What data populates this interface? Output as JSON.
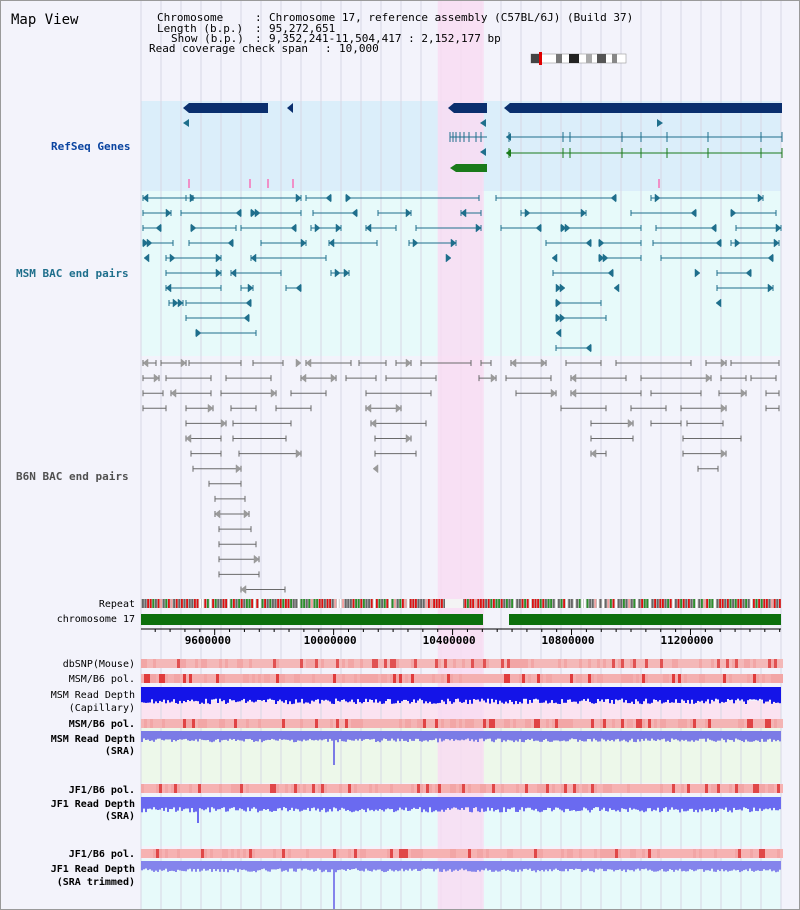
{
  "app": {
    "title": "Map View"
  },
  "info": {
    "chromosome_label": "Chromosome",
    "chromosome_value": "Chromosome 17, reference assembly (C57BL/6J) (Build 37)",
    "length_label": "Length (b.p.)",
    "length_value": "95,272,651",
    "show_label": "Show (b.p.)",
    "show_value": "9,352,241-11,504,417 : 2,152,177 bp",
    "coverage_label": "Read coverage check span",
    "coverage_value": "10,000"
  },
  "region": {
    "start_bp": 9352241,
    "end_bp": 11504417,
    "highlight_start_bp": 10350000,
    "highlight_end_bp": 10505000
  },
  "tracks": [
    {
      "id": "refseq",
      "label": "RefSeq Genes",
      "color": "#0a44a0"
    },
    {
      "id": "msm_bac",
      "label": "MSM BAC end pairs",
      "color": "#1f6f8c"
    },
    {
      "id": "b6n_bac",
      "label": "B6N BAC end pairs",
      "color": "#505050"
    }
  ],
  "small_tracks": {
    "repeat": "Repeat",
    "chromosome": "chromosome 17"
  },
  "axis": {
    "ticks": [
      9600000,
      10000000,
      10400000,
      10800000,
      11200000
    ]
  },
  "bottom_tracks": {
    "dbsnp": "dbSNP(Mouse)",
    "msm_b6_pol": "MSM/B6 pol.",
    "msm_depth_cap_1": "MSM Read Depth",
    "msm_depth_cap_2": "(Capillary)",
    "msm_b6_pol_2": "MSM/B6 pol.",
    "msm_depth_sra_1": "MSM Read Depth",
    "msm_depth_sra_2": "(SRA)",
    "jf1_b6_pol": "JF1/B6 pol.",
    "jf1_depth_sra_1": "JF1 Read Depth",
    "jf1_depth_sra_2": "(SRA)",
    "jf1_b6_pol_2": "JF1/B6 pol.",
    "jf1_depth_trim_1": "JF1 Read Depth",
    "jf1_depth_trim_2": "(SRA trimmed)"
  },
  "colors": {
    "refseq_bg": "#dbeefa",
    "bac_bg": "#e7fafa",
    "highlight": "#f8dcf2",
    "gene_dark": "#0a2f6e",
    "gene_green": "#1a7a1a",
    "orange": "#e08a00",
    "depth_blue": "#1010e0"
  }
}
